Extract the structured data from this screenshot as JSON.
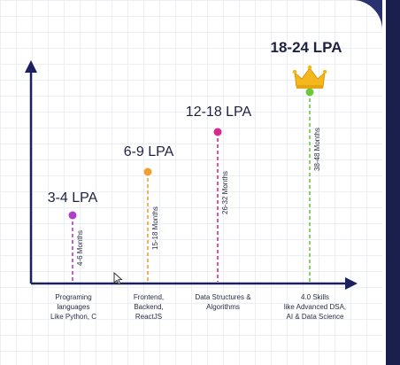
{
  "stages": [
    {
      "salary": "3-4 LPA",
      "duration": "4-6 Months",
      "skills": "Programing\nlanguages\nLike Python, C",
      "color": "#b03ec9"
    },
    {
      "salary": "6-9 LPA",
      "duration": "15-18 Months",
      "skills": "Frontend,\nBackend,\nReactJS",
      "color": "#f0a030"
    },
    {
      "salary": "12-18 LPA",
      "duration": "26-32 Months",
      "skills": "Data Structures &\nAlgorithms",
      "color": "#d62b8c"
    },
    {
      "salary": "18-24 LPA",
      "duration": "38-48 Months",
      "skills": "4.0 Skills\nlike Advanced DSA,\nAI & Data Science",
      "color": "#6cc83a"
    }
  ],
  "colors": {
    "axis": "#1c2060",
    "crown": "#f5b81c",
    "background": "#2a3170"
  },
  "icons": {
    "top_marker": "crown-icon",
    "pointer": "mouse-cursor-icon"
  }
}
